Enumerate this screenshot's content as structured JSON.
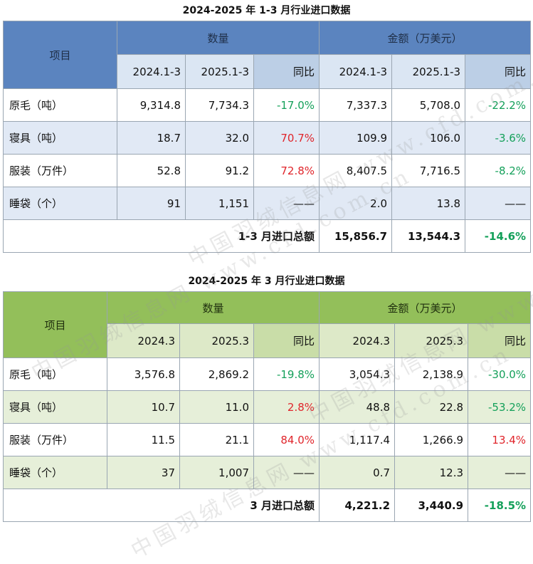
{
  "table1": {
    "title": "2024-2025 年 1-3 月行业进口数据",
    "item_header": "项目",
    "qty_header": "数量",
    "amt_header": "金额（万美元）",
    "sub_headers": [
      "2024.1-3",
      "2025.1-3",
      "同比",
      "2024.1-3",
      "2025.1-3",
      "同比"
    ],
    "rows": [
      {
        "name": "原毛（吨）",
        "v": [
          "9,314.8",
          "7,734.3",
          "-17.0%",
          "7,337.3",
          "5,708.0",
          "-22.2%"
        ]
      },
      {
        "name": "寝具（吨）",
        "v": [
          "18.7",
          "32.0",
          "70.7%",
          "109.9",
          "106.0",
          "-3.6%"
        ]
      },
      {
        "name": "服装（万件）",
        "v": [
          "52.8",
          "91.2",
          "72.8%",
          "8,407.5",
          "7,716.5",
          "-8.2%"
        ]
      },
      {
        "name": "睡袋（个）",
        "v": [
          "91",
          "1,151",
          "——",
          "2.0",
          "13.8",
          "——"
        ]
      }
    ],
    "total_label": "1-3 月进口总额",
    "total": [
      "15,856.7",
      "13,544.3",
      "-14.6%"
    ]
  },
  "table2": {
    "title": "2024-2025 年 3 月行业进口数据",
    "item_header": "项目",
    "qty_header": "数量",
    "amt_header": "金额（万美元）",
    "sub_headers": [
      "2024.3",
      "2025.3",
      "同比",
      "2024.3",
      "2025.3",
      "同比"
    ],
    "rows": [
      {
        "name": "原毛（吨）",
        "v": [
          "3,576.8",
          "2,869.2",
          "-19.8%",
          "3,054.3",
          "2,138.9",
          "-30.0%"
        ]
      },
      {
        "name": "寝具（吨）",
        "v": [
          "10.7",
          "11.0",
          "2.8%",
          "48.8",
          "22.8",
          "-53.2%"
        ]
      },
      {
        "name": "服装（万件）",
        "v": [
          "11.5",
          "21.1",
          "84.0%",
          "1,117.4",
          "1,266.9",
          "13.4%"
        ]
      },
      {
        "name": "睡袋（个）",
        "v": [
          "37",
          "1,007",
          "——",
          "0.7",
          "12.3",
          "——"
        ]
      }
    ],
    "total_label": "3 月进口总额",
    "total": [
      "4,221.2",
      "3,440.9",
      "-18.5%"
    ]
  },
  "watermark": "中国羽绒信息网 www.cfd.com.cn",
  "colors": {
    "increase": "#e0252b",
    "decrease": "#14a05a"
  }
}
